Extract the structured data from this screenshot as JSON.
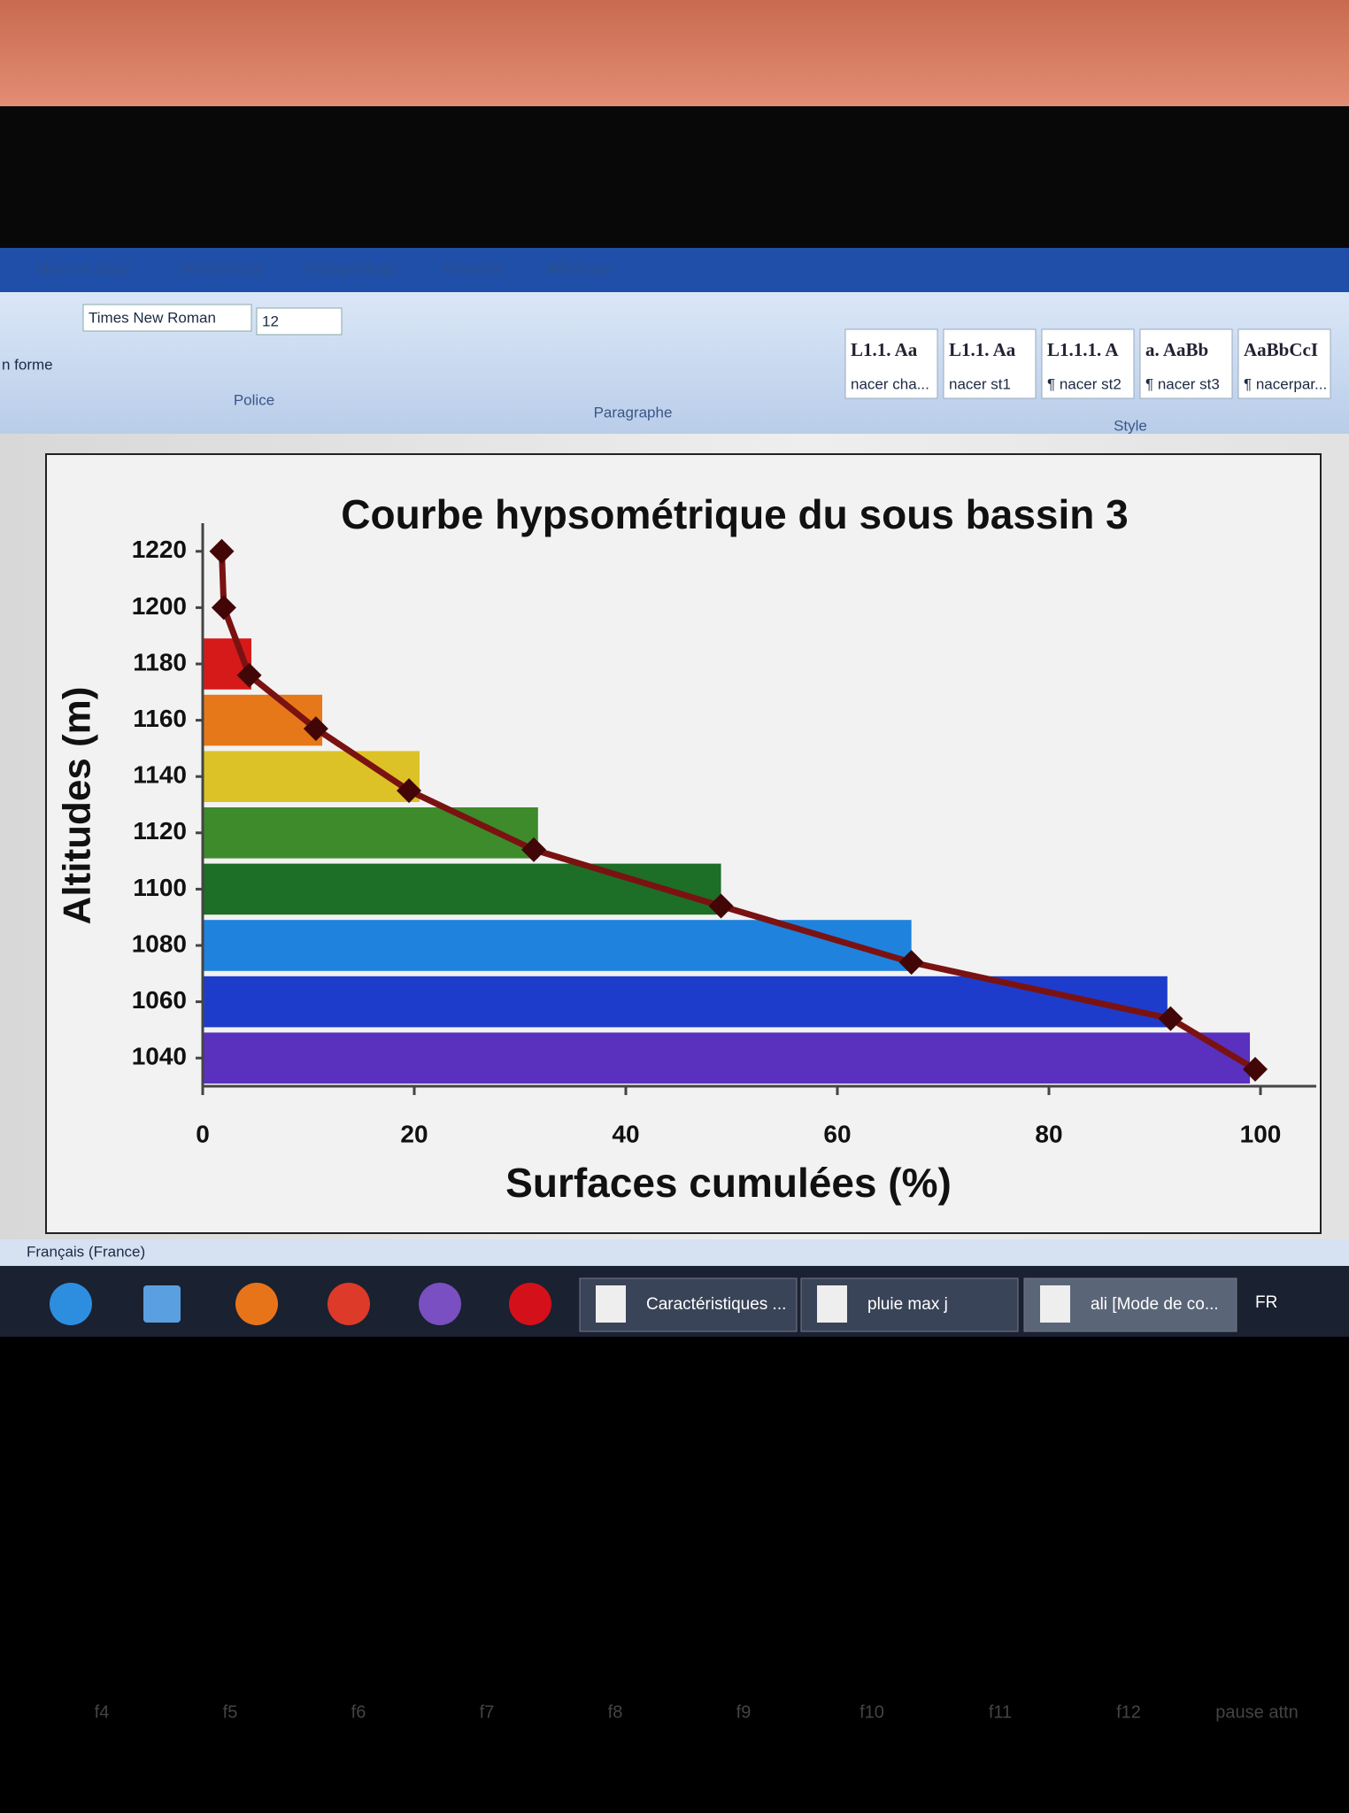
{
  "ribbon": {
    "tabs": [
      "Mise en page",
      "Références",
      "Publipostage",
      "Révision",
      "Affichage"
    ],
    "left_label": "n forme",
    "font_name": "Times New Roman",
    "font_size": "12",
    "groups": [
      "Police",
      "Paragraphe",
      "Style"
    ],
    "styles": [
      {
        "preview": "L1.1. Aa",
        "name": "nacer cha..."
      },
      {
        "preview": "L1.1. Aa",
        "name": "nacer st1"
      },
      {
        "preview": "L1.1.1. A",
        "name": "¶ nacer st2"
      },
      {
        "preview": "a. AaBb",
        "name": "¶ nacer st3"
      },
      {
        "preview": "AaBbCcI",
        "name": "¶ nacerpar..."
      }
    ]
  },
  "status_bar": {
    "language": "Français (France)"
  },
  "taskbar": {
    "windows": [
      "Caractéristiques ...",
      "pluie max j",
      "ali [Mode de co..."
    ],
    "input_language": "FR"
  },
  "keyboard": {
    "keys": [
      "f4",
      "f5",
      "f6",
      "f7",
      "f8",
      "f9",
      "f10",
      "f11",
      "f12",
      "pause attn"
    ]
  },
  "chart_data": {
    "type": "hypsometric",
    "title": "Courbe hypsométrique du sous bassin 3",
    "xlabel": "Surfaces cumulées (%)",
    "ylabel": "Altitudes (m)",
    "xlim": [
      0,
      100
    ],
    "xticks": [
      0,
      20,
      40,
      60,
      80,
      100
    ],
    "ylim": [
      1030,
      1230
    ],
    "yticks": [
      1040,
      1060,
      1080,
      1100,
      1120,
      1140,
      1160,
      1180,
      1200,
      1220
    ],
    "bands": {
      "lower": [
        1030,
        1050,
        1070,
        1090,
        1110,
        1130,
        1150,
        1170
      ],
      "upper": [
        1050,
        1070,
        1090,
        1110,
        1130,
        1150,
        1170,
        1190
      ],
      "values": [
        99,
        91.2,
        67,
        49,
        31.7,
        20.5,
        11.3,
        4.6
      ],
      "colors": [
        "#5a30bf",
        "#1e3ccc",
        "#1f82dd",
        "#1d6e26",
        "#3d8b2b",
        "#dcc226",
        "#e6781a",
        "#d61a1a"
      ]
    },
    "line": {
      "color": "#7a1212",
      "marker_color": "#420606",
      "x": [
        99.5,
        91.5,
        67,
        49,
        31.3,
        19.5,
        10.7,
        4.4,
        2,
        1.8
      ],
      "y": [
        1036,
        1054,
        1074,
        1094,
        1114,
        1135,
        1157,
        1176,
        1200,
        1220
      ]
    }
  }
}
